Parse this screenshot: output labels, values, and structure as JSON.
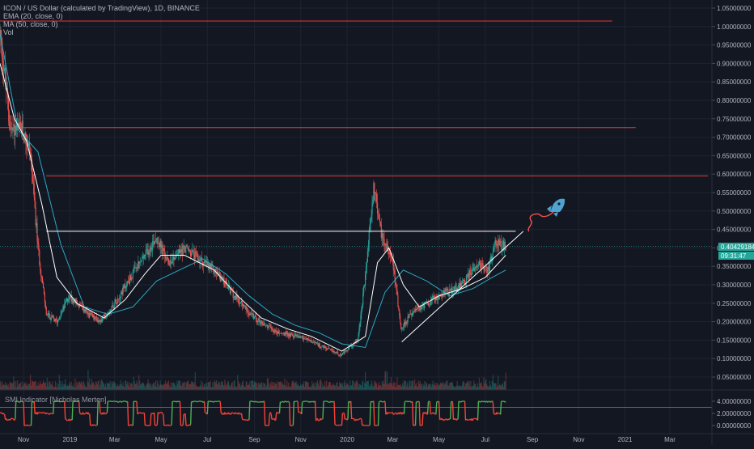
{
  "legend": {
    "symbol": "ICON / US Dollar (calculated by TradingView), 1D, BINANCE",
    "ema": "EMA (20, close, 0)",
    "ma": "MA (50, close, 0)",
    "vol": "Vol"
  },
  "sub_indicator": {
    "label": "SMI Indicator [Nicholas Merten]"
  },
  "price_tags": {
    "last_price": "0.40429184",
    "countdown": "09:31:47"
  },
  "colors": {
    "background": "#131722",
    "grid": "#1f2330",
    "axis_text": "#b2b5be",
    "bull": "#26a69a",
    "bear": "#ef5350",
    "ema": "#ffffff",
    "ma": "#2aa8c4",
    "resistance": "#e53935",
    "smi_green": "#4caf50",
    "smi_red": "#f44336",
    "price_tag": "#26a69a",
    "rocket": "#4fa3d1"
  },
  "chart_data": {
    "type": "candlestick",
    "x_axis": {
      "tick_labels": [
        "Nov",
        "2019",
        "Mar",
        "May",
        "Jul",
        "Sep",
        "Nov",
        "2020",
        "Mar",
        "May",
        "Jul",
        "Sep",
        "Nov",
        "2021",
        "Mar"
      ]
    },
    "y_axis": {
      "scale": "linear",
      "range": [
        0.04,
        1.06
      ],
      "tick_labels": [
        "1.05000000",
        "1.00000000",
        "0.95000000",
        "0.90000000",
        "0.85000000",
        "0.80000000",
        "0.75000000",
        "0.70000000",
        "0.65000000",
        "0.60000000",
        "0.55000000",
        "0.50000000",
        "0.45000000",
        "0.40000000",
        "0.35000000",
        "0.30000000",
        "0.25000000",
        "0.20000000",
        "0.15000000",
        "0.10000000",
        "0.05000000"
      ]
    },
    "sub_axis": {
      "tick_labels": [
        "4.00000000",
        "2.00000000",
        "0.00000000"
      ]
    },
    "price_path": [
      [
        "2018-10-01",
        0.98
      ],
      [
        "2018-10-15",
        0.72
      ],
      [
        "2018-10-31",
        0.72
      ],
      [
        "2018-11-10",
        0.66
      ],
      [
        "2018-11-20",
        0.4
      ],
      [
        "2018-12-01",
        0.22
      ],
      [
        "2018-12-15",
        0.2
      ],
      [
        "2018-12-31",
        0.27
      ],
      [
        "2019-01-25",
        0.22
      ],
      [
        "2019-02-10",
        0.2
      ],
      [
        "2019-03-01",
        0.25
      ],
      [
        "2019-03-25",
        0.33
      ],
      [
        "2019-04-10",
        0.38
      ],
      [
        "2019-04-25",
        0.43
      ],
      [
        "2019-05-10",
        0.36
      ],
      [
        "2019-06-01",
        0.4
      ],
      [
        "2019-06-20",
        0.37
      ],
      [
        "2019-07-15",
        0.33
      ],
      [
        "2019-08-05",
        0.27
      ],
      [
        "2019-09-01",
        0.21
      ],
      [
        "2019-10-01",
        0.17
      ],
      [
        "2019-11-01",
        0.16
      ],
      [
        "2019-12-01",
        0.13
      ],
      [
        "2019-12-25",
        0.11
      ],
      [
        "2020-01-15",
        0.15
      ],
      [
        "2020-01-25",
        0.32
      ],
      [
        "2020-02-05",
        0.57
      ],
      [
        "2020-02-15",
        0.44
      ],
      [
        "2020-03-01",
        0.37
      ],
      [
        "2020-03-12",
        0.18
      ],
      [
        "2020-03-25",
        0.22
      ],
      [
        "2020-04-15",
        0.25
      ],
      [
        "2020-05-10",
        0.28
      ],
      [
        "2020-06-01",
        0.3
      ],
      [
        "2020-06-20",
        0.36
      ],
      [
        "2020-07-05",
        0.34
      ],
      [
        "2020-07-15",
        0.42
      ],
      [
        "2020-07-28",
        0.4
      ]
    ],
    "ema_path": [
      [
        "2018-10-01",
        0.9
      ],
      [
        "2018-10-20",
        0.75
      ],
      [
        "2018-11-05",
        0.69
      ],
      [
        "2018-11-25",
        0.52
      ],
      [
        "2018-12-15",
        0.32
      ],
      [
        "2019-01-10",
        0.25
      ],
      [
        "2019-02-15",
        0.21
      ],
      [
        "2019-03-15",
        0.26
      ],
      [
        "2019-04-10",
        0.33
      ],
      [
        "2019-05-01",
        0.38
      ],
      [
        "2019-06-01",
        0.38
      ],
      [
        "2019-07-10",
        0.34
      ],
      [
        "2019-08-10",
        0.27
      ],
      [
        "2019-09-10",
        0.21
      ],
      [
        "2019-10-15",
        0.18
      ],
      [
        "2019-11-15",
        0.16
      ],
      [
        "2019-12-25",
        0.12
      ],
      [
        "2020-01-25",
        0.16
      ],
      [
        "2020-02-10",
        0.36
      ],
      [
        "2020-02-25",
        0.4
      ],
      [
        "2020-03-15",
        0.3
      ],
      [
        "2020-04-05",
        0.24
      ],
      [
        "2020-05-01",
        0.27
      ],
      [
        "2020-06-01",
        0.29
      ],
      [
        "2020-07-01",
        0.32
      ],
      [
        "2020-07-28",
        0.38
      ]
    ],
    "ma_path": [
      [
        "2018-10-01",
        0.98
      ],
      [
        "2018-10-25",
        0.72
      ],
      [
        "2018-11-20",
        0.66
      ],
      [
        "2018-12-20",
        0.41
      ],
      [
        "2019-01-20",
        0.24
      ],
      [
        "2019-02-20",
        0.22
      ],
      [
        "2019-03-25",
        0.24
      ],
      [
        "2019-04-25",
        0.31
      ],
      [
        "2019-05-25",
        0.34
      ],
      [
        "2019-06-25",
        0.37
      ],
      [
        "2019-07-25",
        0.33
      ],
      [
        "2019-08-25",
        0.27
      ],
      [
        "2019-09-25",
        0.22
      ],
      [
        "2019-10-25",
        0.19
      ],
      [
        "2019-11-25",
        0.17
      ],
      [
        "2019-12-25",
        0.14
      ],
      [
        "2020-01-25",
        0.13
      ],
      [
        "2020-02-20",
        0.28
      ],
      [
        "2020-03-15",
        0.34
      ],
      [
        "2020-04-15",
        0.31
      ],
      [
        "2020-05-15",
        0.27
      ],
      [
        "2020-06-15",
        0.29
      ],
      [
        "2020-07-10",
        0.32
      ],
      [
        "2020-07-28",
        0.34
      ]
    ],
    "drawings": {
      "resistance_lines": [
        {
          "price": 1.015,
          "from": "2018-10-01",
          "to": "2020-12-15"
        },
        {
          "price": 0.726,
          "from": "2018-10-01",
          "to": "2021-01-15"
        },
        {
          "price": 0.595,
          "from": "2018-12-01",
          "to": "2021-04-20"
        }
      ],
      "neckline": {
        "price": 0.445,
        "from": "2018-12-01",
        "to": "2020-08-10"
      },
      "trendline": {
        "from": [
          "2020-03-13",
          0.145
        ],
        "to": [
          "2020-08-20",
          0.445
        ]
      }
    }
  }
}
